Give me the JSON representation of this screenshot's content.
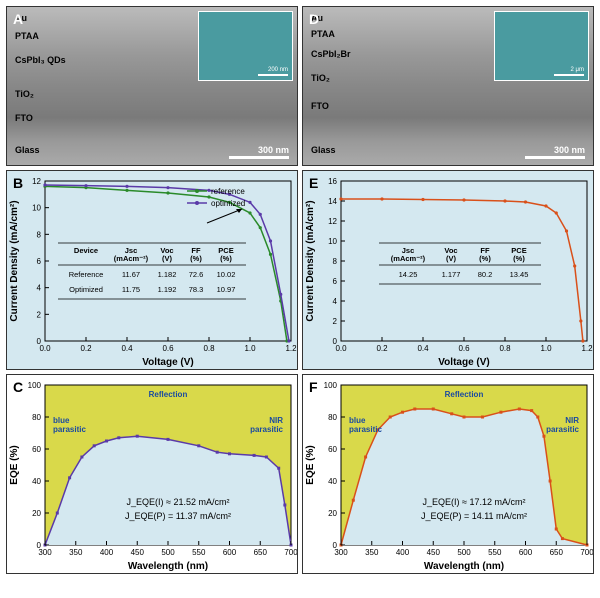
{
  "panelA": {
    "label": "A",
    "layers": [
      "Au",
      "PTAA",
      "CsPbI₃ QDs",
      "TiO₂",
      "FTO",
      "Glass"
    ],
    "layerY": [
      6,
      24,
      48,
      82,
      106,
      138
    ],
    "scale": "300 nm",
    "inset_scale": "200 nm",
    "inset_bg": "#4a9ba0"
  },
  "panelD": {
    "label": "D",
    "layers": [
      "Au",
      "PTAA",
      "CsPbI₂Br",
      "TiO₂",
      "FTO",
      "Glass"
    ],
    "layerY": [
      6,
      22,
      42,
      66,
      94,
      138
    ],
    "scale": "300 nm",
    "inset_scale": "2 μm",
    "inset_bg": "#4a9ba0"
  },
  "panelB": {
    "label": "B",
    "bg": "#d4e8f0",
    "xlabel": "Voltage (V)",
    "ylabel": "Current Density (mA/cm²)",
    "xlim": [
      0,
      1.2
    ],
    "ylim": [
      0,
      12
    ],
    "xticks": [
      0.0,
      0.2,
      0.4,
      0.6,
      0.8,
      1.0,
      1.2
    ],
    "yticks": [
      0,
      2,
      4,
      6,
      8,
      10,
      12
    ],
    "series": [
      {
        "name": "reference",
        "color": "#2a8a2a",
        "x": [
          0,
          0.2,
          0.4,
          0.6,
          0.8,
          0.9,
          1.0,
          1.05,
          1.1,
          1.15,
          1.18
        ],
        "y": [
          11.6,
          11.5,
          11.3,
          11.1,
          10.8,
          10.4,
          9.6,
          8.5,
          6.5,
          3,
          0
        ]
      },
      {
        "name": "optimized",
        "color": "#5a3aa8",
        "x": [
          0,
          0.2,
          0.4,
          0.6,
          0.8,
          0.9,
          1.0,
          1.05,
          1.1,
          1.15,
          1.19
        ],
        "y": [
          11.7,
          11.65,
          11.6,
          11.5,
          11.3,
          11.0,
          10.4,
          9.5,
          7.5,
          3.5,
          0
        ]
      }
    ],
    "table": {
      "headers": [
        "Device",
        "Jsc\n(mAcm⁻²)",
        "Voc\n(V)",
        "FF\n(%)",
        "PCE\n(%)"
      ],
      "rows": [
        [
          "Reference",
          "11.67",
          "1.182",
          "72.6",
          "10.02"
        ],
        [
          "Optimized",
          "11.75",
          "1.192",
          "78.3",
          "10.97"
        ]
      ]
    }
  },
  "panelE": {
    "label": "E",
    "bg": "#d4e8f0",
    "xlabel": "Voltage (V)",
    "ylabel": "Current Density (mA/cm²)",
    "xlim": [
      0,
      1.2
    ],
    "ylim": [
      0,
      16
    ],
    "xticks": [
      0.0,
      0.2,
      0.4,
      0.6,
      0.8,
      1.0,
      1.2
    ],
    "yticks": [
      0,
      2,
      4,
      6,
      8,
      10,
      12,
      14,
      16
    ],
    "series": [
      {
        "name": "device",
        "color": "#d9501a",
        "x": [
          0,
          0.2,
          0.4,
          0.6,
          0.8,
          0.9,
          1.0,
          1.05,
          1.1,
          1.14,
          1.17,
          1.18
        ],
        "y": [
          14.2,
          14.2,
          14.15,
          14.1,
          14.0,
          13.9,
          13.5,
          12.8,
          11.0,
          7.5,
          2,
          0
        ]
      }
    ],
    "table": {
      "headers": [
        "Jsc\n(mAcm⁻²)",
        "Voc\n(V)",
        "FF\n(%)",
        "PCE\n(%)"
      ],
      "rows": [
        [
          "14.25",
          "1.177",
          "80.2",
          "13.45"
        ]
      ]
    }
  },
  "panelC": {
    "label": "C",
    "bg_outer": "#d9d94a",
    "bg_inner": "#d4e8f0",
    "xlabel": "Wavelength (nm)",
    "ylabel": "EQE (%)",
    "xlim": [
      300,
      700
    ],
    "ylim": [
      0,
      100
    ],
    "xticks": [
      300,
      350,
      400,
      450,
      500,
      550,
      600,
      650,
      700
    ],
    "yticks": [
      0,
      20,
      40,
      60,
      80,
      100
    ],
    "color": "#5a3aa8",
    "x": [
      300,
      320,
      340,
      360,
      380,
      400,
      420,
      450,
      500,
      550,
      580,
      600,
      640,
      660,
      680,
      690,
      700
    ],
    "y": [
      0,
      20,
      42,
      55,
      62,
      65,
      67,
      68,
      66,
      62,
      58,
      57,
      56,
      55,
      48,
      25,
      0
    ],
    "notes": {
      "reflection": "Reflection",
      "blue": "blue\nparasitic",
      "nir": "NIR\nparasitic"
    },
    "formulas": [
      "J_EQE(I) ≈ 21.52 mA/cm²",
      "J_EQE(P) = 11.37 mA/cm²"
    ]
  },
  "panelF": {
    "label": "F",
    "bg_outer": "#d9d94a",
    "bg_inner": "#d4e8f0",
    "xlabel": "Wavelength (nm)",
    "ylabel": "EQE (%)",
    "xlim": [
      300,
      700
    ],
    "ylim": [
      0,
      100
    ],
    "xticks": [
      300,
      350,
      400,
      450,
      500,
      550,
      600,
      650,
      700
    ],
    "yticks": [
      0,
      20,
      40,
      60,
      80,
      100
    ],
    "color": "#d9501a",
    "x": [
      300,
      320,
      340,
      360,
      380,
      400,
      420,
      450,
      480,
      500,
      530,
      560,
      590,
      610,
      620,
      630,
      640,
      650,
      660,
      700
    ],
    "y": [
      0,
      28,
      55,
      72,
      80,
      83,
      85,
      85,
      82,
      80,
      80,
      83,
      85,
      84,
      80,
      68,
      40,
      10,
      4,
      0
    ],
    "notes": {
      "reflection": "Reflection",
      "blue": "blue\nparasitic",
      "nir": "NIR\nparasitic"
    },
    "formulas": [
      "J_EQE(I) ≈ 17.12 mA/cm²",
      "J_EQE(P) = 14.11 mA/cm²"
    ]
  }
}
